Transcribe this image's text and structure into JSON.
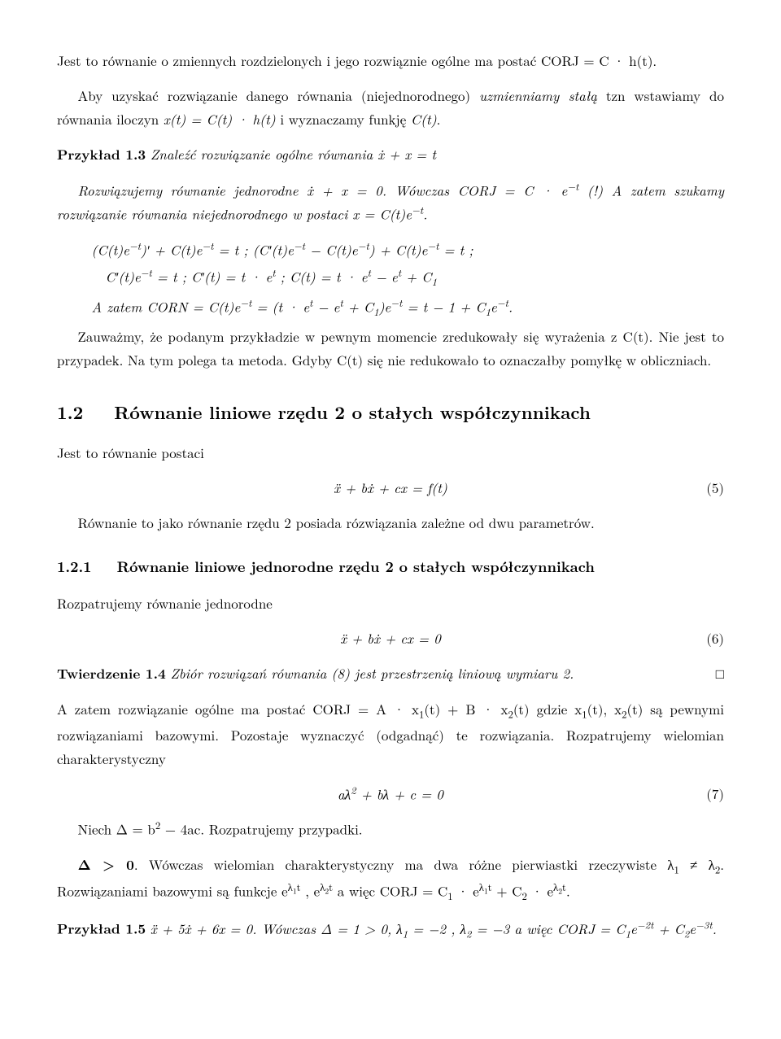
{
  "p1": "Jest to równanie o zmiennych rozdzielonych i jego rozwiąznie ogólne ma postać CORJ = C · h(t).",
  "p2": "Aby uzyskać rozwiązanie danego równania (niejednorodnego) uzmienniamy stałą tzn wstawiamy do równania iloczyn x(t) = C(t) · h(t) i wyznaczamy funkję C(t).",
  "ex13_label": "Przykład 1.3",
  "ex13_stmt": "Znaleźć rozwiązanie ogólne równania ẋ + x = t",
  "ex13_p1a": "Rozwiązujemy równanie jednorodne ẋ + x = 0. Wówczas CORJ = C · e",
  "ex13_p1a_sup": "−t",
  "ex13_p1b": " (!) A zatem szukamy rozwiązanie równania niejednorodnego w postaci x = C(t)e",
  "ex13_p1b_sup": "−t",
  "ex13_p1c": ".",
  "eqline1a": "(C(t)e",
  "eqline1a_sup1": "−t",
  "eqline1b": ")′ + C(t)e",
  "eqline1b_sup": "−t",
  "eqline1c": " = t   ;   (C′(t)e",
  "eqline1c_sup": "−t",
  "eqline1d": " − C(t)e",
  "eqline1d_sup": "−t",
  "eqline1e": ") + C(t)e",
  "eqline1e_sup": "−t",
  "eqline1f": " = t    ;",
  "eqline2a": "C′(t)e",
  "eqline2a_sup": "−t",
  "eqline2b": " = t    ; C′(t) = t · e",
  "eqline2b_sup": "t",
  "eqline2c": "    ; C(t) = t · e",
  "eqline2c_sup": "t",
  "eqline2d": " − e",
  "eqline2d_sup": "t",
  "eqline2e": " + C",
  "eqline2e_sub": "1",
  "eqline3a": "A zatem CORN = C(t)e",
  "eqline3a_sup": "−t",
  "eqline3b": " = (t · e",
  "eqline3b_sup": "t",
  "eqline3c": " − e",
  "eqline3c_sup": "t",
  "eqline3d": " + C",
  "eqline3d_sub": "1",
  "eqline3e": ")e",
  "eqline3e_sup": "−t",
  "eqline3f": " = t − 1 + C",
  "eqline3f_sub": "1",
  "eqline3g": "e",
  "eqline3g_sup": "−t",
  "eqline3h": ".",
  "p_note": "Zauważmy, że podanym przykładzie w pewnym momencie zredukowały się wyrażenia z C(t). Nie jest to przypadek. Na tym polega ta metoda. Gdyby C(t) się nie redukowało to oznaczałby pomyłkę w obliczniach.",
  "sec12_num": "1.2",
  "sec12_title": "Równanie liniowe rzędu 2 o stałych współczynnikach",
  "sec12_intro": "Jest to równanie postaci",
  "eq5": "ẍ + bẋ + cx = f(t)",
  "eq5_num": "(5)",
  "sec12_after": "Równanie to jako równanie rzędu 2 posiada rózwiązania zależne od dwu parametrów.",
  "sub121_num": "1.2.1",
  "sub121_title": "Równanie liniowe jednorodne rzędu 2 o stałych współczynnikach",
  "sub121_intro": "Rozpatrujemy równanie jednorodne",
  "eq6": "ẍ + bẋ + cx = 0",
  "eq6_num": "(6)",
  "thm14_label": "Twierdzenie 1.4",
  "thm14_stmt": "Zbiór rozwiązań równania (8) jest przestrzenią liniową wymiaru 2.",
  "qed": "□",
  "p_basis_a": "A zatem rozwiązanie ogólne ma postać CORJ = A · x",
  "p_basis_sub1": "1",
  "p_basis_b": "(t) + B · x",
  "p_basis_sub2": "2",
  "p_basis_c": "(t) gdzie x",
  "p_basis_sub3": "1",
  "p_basis_d": "(t), x",
  "p_basis_sub4": "2",
  "p_basis_e": "(t) są pewnymi rozwiązaniami bazowymi. Pozostaje wyznaczyć (odgadnąć) te rozwiązania. Rozpatrujemy wielomian charakterystyczny",
  "eq7a": "aλ",
  "eq7a_sup": "2",
  "eq7b": " + bλ + c = 0",
  "eq7_num": "(7)",
  "p_delta_a": "Niech Δ = b",
  "p_delta_sup": "2",
  "p_delta_b": " − 4ac. Rozpatrujemy przypadki.",
  "case_a": "Δ > 0",
  "case_b": ". Wówczas wielomian charakterystyczny ma dwa różne pierwiastki rzeczywiste λ",
  "case_sub1": "1",
  "case_c": " ≠ λ",
  "case_sub2": "2",
  "case_d": ". Rozwiązaniami bazowymi są funkcje e",
  "case_sup1a": "λ",
  "case_sup1b": "1",
  "case_sup1c": "t",
  "case_e": " , e",
  "case_sup2a": "λ",
  "case_sup2b": "2",
  "case_sup2c": "t",
  "case_f": " a więc CORJ = C",
  "case_sub3": "1",
  "case_g": " · e",
  "case_sup3a": "λ",
  "case_sup3b": "1",
  "case_sup3c": "t",
  "case_h": " + C",
  "case_sub4": "2",
  "case_i": " · e",
  "case_sup4a": "λ",
  "case_sup4b": "2",
  "case_sup4c": "t",
  "case_j": ".",
  "ex15_label": "Przykład 1.5",
  "ex15_a": "ẍ + 5ẋ + 6x = 0. Wówczas Δ = 1 > 0, λ",
  "ex15_sub1": "1",
  "ex15_b": " = −2 , λ",
  "ex15_sub2": "2",
  "ex15_c": " = −3 a więc CORJ = C",
  "ex15_sub3": "1",
  "ex15_d": "e",
  "ex15_sup1": "−2t",
  "ex15_e": " + C",
  "ex15_sub4": "2",
  "ex15_f": "e",
  "ex15_sup2": "−3t",
  "ex15_g": "."
}
